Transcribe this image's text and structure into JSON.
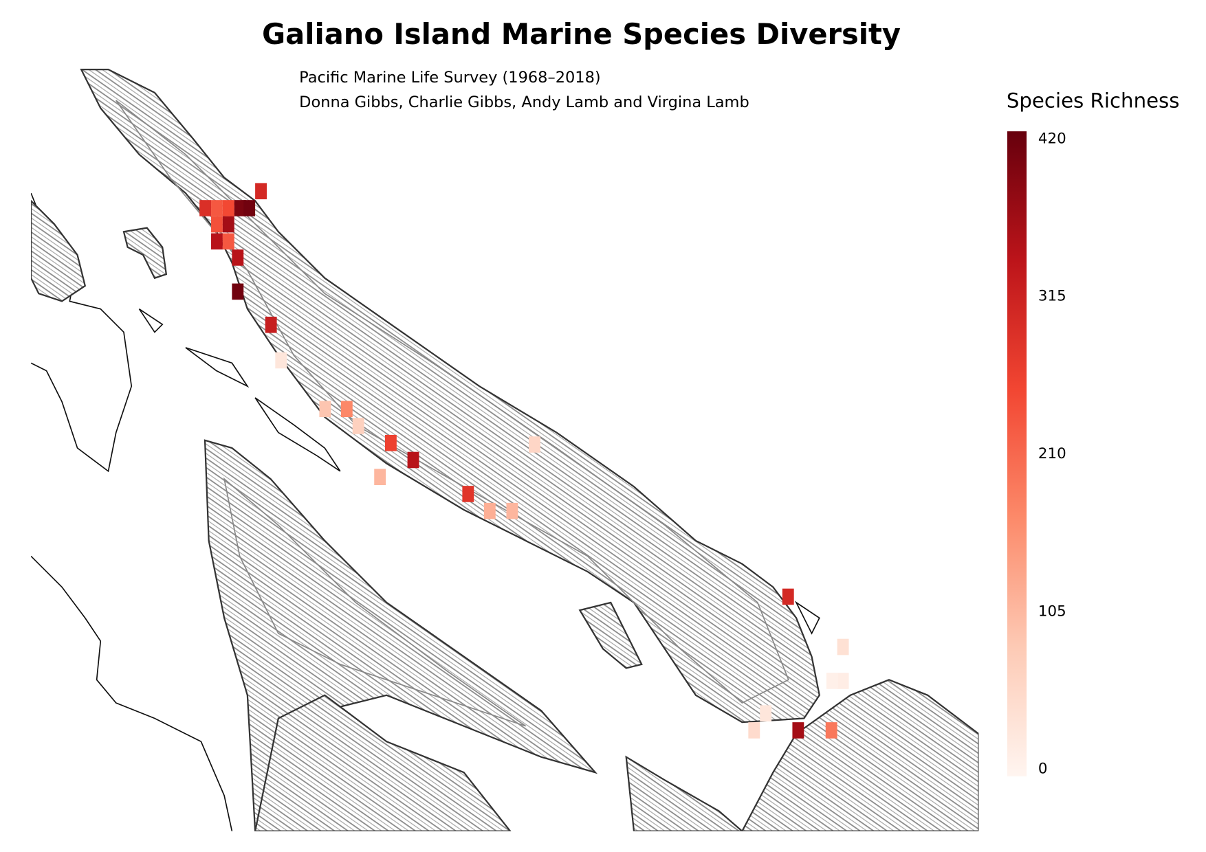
{
  "header": {
    "title": "Galiano Island Marine Species Diversity",
    "subtitle": [
      "Pacific Marine Life Survey (1968–2018)",
      "Donna Gibbs, Charlie Gibbs, Andy Lamb and Virgina Lamb"
    ]
  },
  "legend": {
    "title": "Species Richness",
    "clim": [
      0,
      420
    ],
    "ticks": [
      0,
      105,
      210,
      315,
      420
    ],
    "colorscale": [
      "#fff5f0",
      "#fdcab5",
      "#fc8a6a",
      "#f24632",
      "#bc141a",
      "#67000d"
    ]
  },
  "cells": {
    "values": [
      300,
      290,
      230,
      250,
      400,
      410,
      240,
      360,
      340,
      230,
      340,
      410,
      320,
      30,
      90,
      170,
      70,
      260,
      340,
      110,
      60,
      280,
      120,
      110,
      300,
      40,
      15,
      10,
      30,
      50,
      360,
      190
    ]
  }
}
